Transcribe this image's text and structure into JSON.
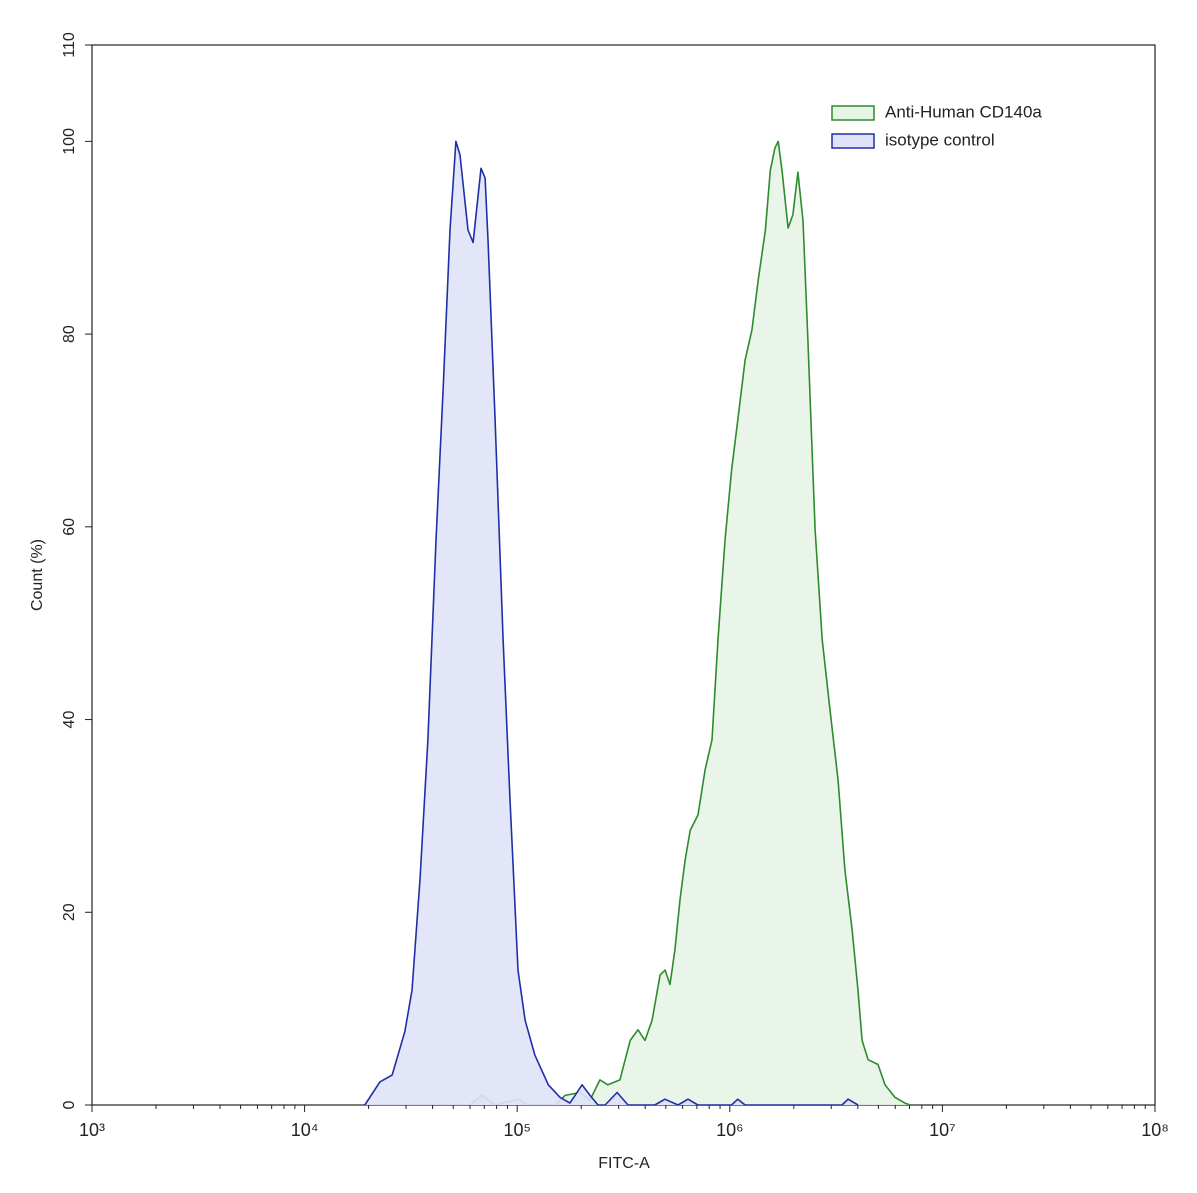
{
  "chart_data": {
    "type": "area",
    "x_label": "FITC-A",
    "y_label": "Count  (%)",
    "xscale": "log",
    "xlim": [
      1000,
      100000000
    ],
    "xticks": [
      {
        "value": 1000,
        "label": "10³"
      },
      {
        "value": 10000,
        "label": "10⁴"
      },
      {
        "value": 100000,
        "label": "10⁵"
      },
      {
        "value": 1000000,
        "label": "10⁶"
      },
      {
        "value": 10000000,
        "label": "10⁷"
      },
      {
        "value": 100000000,
        "label": "10⁸"
      }
    ],
    "ylim": [
      0,
      110
    ],
    "yticks": [
      0,
      20,
      40,
      60,
      80,
      100,
      110
    ],
    "legend": "upper right",
    "series": [
      {
        "name": "Anti-Human CD140a",
        "color": "#2e8b2e",
        "fill": "#e6f4e6",
        "x": [
          60000,
          68200,
          78700,
          92500,
          101000,
          112000,
          151000,
          168000,
          197000,
          220000,
          245000,
          267000,
          304000,
          340000,
          370000,
          399000,
          431000,
          470000,
          496000,
          523000,
          552000,
          583000,
          616000,
          651000,
          709000,
          765000,
          825000,
          880000,
          949000,
          1020000,
          1090000,
          1180000,
          1270000,
          1360000,
          1470000,
          1550000,
          1630000,
          1690000,
          1760000,
          1880000,
          1980000,
          2090000,
          2210000,
          2330000,
          2520000,
          2720000,
          2960000,
          3230000,
          3480000,
          3760000,
          4010000,
          4190000,
          4470000,
          4980000,
          5370000,
          5980000,
          6670000,
          7050000
        ],
        "values": [
          0,
          1.0,
          0,
          0.4,
          0.6,
          0,
          0,
          1.0,
          1.3,
          0.5,
          2.6,
          2.1,
          2.6,
          6.7,
          7.8,
          6.7,
          8.8,
          13.5,
          14.0,
          12.5,
          16.1,
          21.3,
          25.4,
          28.5,
          30.1,
          34.8,
          37.9,
          48.3,
          58.6,
          65.9,
          71.1,
          77.3,
          80.4,
          85.6,
          90.8,
          97.0,
          99.3,
          100,
          97.0,
          91.0,
          92.4,
          96.8,
          91.8,
          79.4,
          59.7,
          48.3,
          41.0,
          33.7,
          24.4,
          18.2,
          11.9,
          6.7,
          4.7,
          4.2,
          2.1,
          0.8,
          0.2,
          0
        ]
      },
      {
        "name": "isotype control",
        "color": "#1f2fa8",
        "fill": "#e0e2f8",
        "x": [
          19200,
          22600,
          25800,
          29600,
          32000,
          34900,
          38000,
          41500,
          44800,
          48300,
          51500,
          53800,
          58700,
          62000,
          67600,
          70600,
          72900,
          78700,
          85800,
          92500,
          100900,
          108900,
          121000,
          140000,
          159000,
          177000,
          202000,
          220000,
          240000,
          259000,
          295000,
          332000,
          444000,
          495000,
          571000,
          636000,
          708000,
          1020000,
          1090000,
          1180000,
          3370000,
          3600000,
          4010000
        ],
        "values": [
          0,
          2.4,
          3.1,
          7.6,
          11.9,
          23.4,
          37.9,
          58.6,
          74.2,
          90.8,
          100,
          98.6,
          90.8,
          89.5,
          97.2,
          96.2,
          89.8,
          71.1,
          48.3,
          31.7,
          14.0,
          8.8,
          5.2,
          2.1,
          0.8,
          0.2,
          2.1,
          1.0,
          0,
          0,
          1.3,
          0,
          0,
          0.6,
          0,
          0.6,
          0,
          0,
          0.6,
          0,
          0,
          0.6,
          0
        ]
      }
    ]
  }
}
